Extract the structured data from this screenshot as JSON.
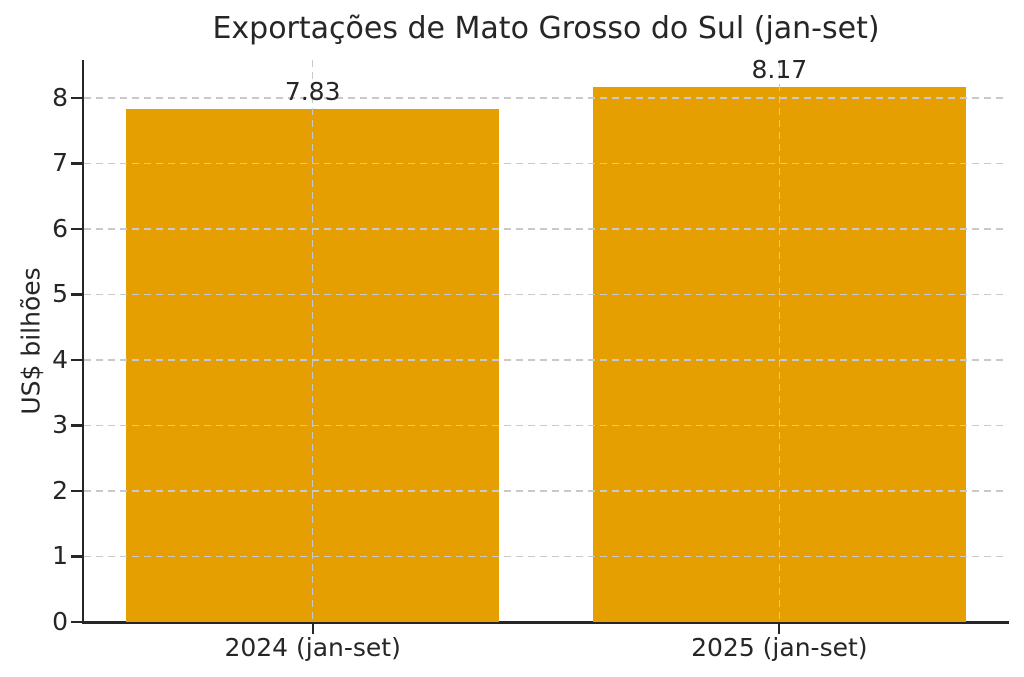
{
  "chart_data": {
    "type": "bar",
    "title": "Exportações de Mato Grosso do Sul (jan-set)",
    "xlabel": "",
    "ylabel": "US$ bilhões",
    "categories": [
      "2024 (jan-set)",
      "2025 (jan-set)"
    ],
    "values": [
      7.83,
      8.17
    ],
    "bar_labels": [
      "7.83",
      "8.17"
    ],
    "yticks": [
      0,
      1,
      2,
      3,
      4,
      5,
      6,
      7,
      8
    ],
    "ylim": [
      0,
      8.58
    ],
    "grid": true,
    "grid_style": "dashed",
    "legend": "none",
    "bar_color": "#E69F00",
    "grid_color": "#c9c9c9",
    "text_color": "#262626",
    "spine_color": "#262626"
  }
}
